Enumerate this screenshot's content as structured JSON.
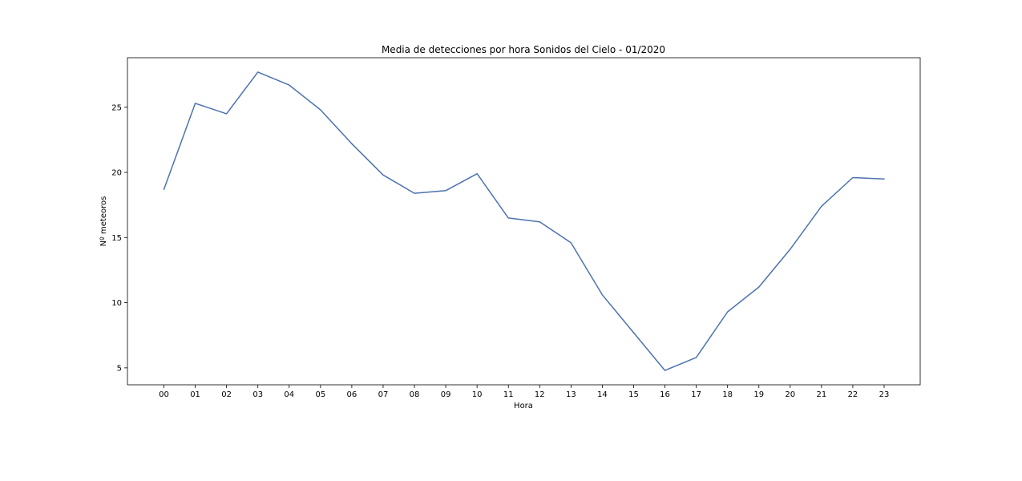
{
  "chart_data": {
    "type": "line",
    "title": "Media de detecciones por hora Sonidos del Cielo - 01/2020",
    "xlabel": "Hora",
    "ylabel": "Nº meteoros",
    "categories": [
      "00",
      "01",
      "02",
      "03",
      "04",
      "05",
      "06",
      "07",
      "08",
      "09",
      "10",
      "11",
      "12",
      "13",
      "14",
      "15",
      "16",
      "17",
      "18",
      "19",
      "20",
      "21",
      "22",
      "23"
    ],
    "yticks": [
      5,
      10,
      15,
      20,
      25
    ],
    "ylim": [
      3.7,
      28.8
    ],
    "grid": false,
    "series": [
      {
        "values": [
          18.7,
          25.3,
          24.5,
          27.7,
          26.7,
          24.8,
          22.2,
          19.8,
          18.4,
          18.6,
          19.9,
          16.5,
          16.2,
          14.6,
          10.6,
          7.7,
          4.8,
          5.8,
          9.3,
          11.2,
          14.1,
          17.4,
          19.6,
          19.5
        ],
        "color": "#4c72b0"
      }
    ]
  }
}
